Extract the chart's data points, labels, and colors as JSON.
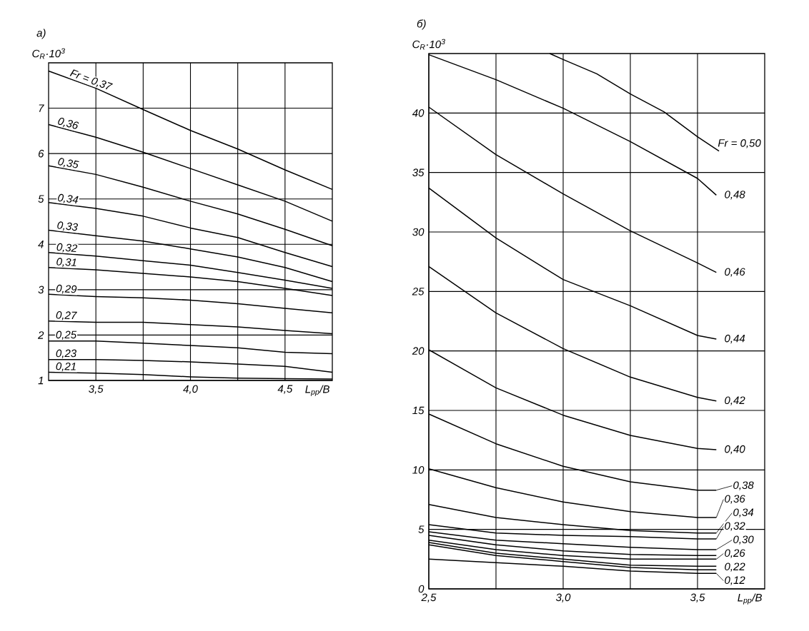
{
  "chart_data": [
    {
      "type": "line",
      "title": "а)",
      "xlabel": "L$_{pp}$/B",
      "ylabel": "C$_{R}$·10$^{3}$",
      "color": "#000000",
      "grid": true,
      "xlim": [
        3.25,
        4.75
      ],
      "ylim": [
        1,
        8
      ],
      "xticks": [
        {
          "value": 3.5,
          "label": "3,5"
        },
        {
          "value": 3.75,
          "label": null
        },
        {
          "value": 4.0,
          "label": "4,0"
        },
        {
          "value": 4.25,
          "label": null
        },
        {
          "value": 4.5,
          "label": "4,5"
        }
      ],
      "yticks": [
        1,
        2,
        3,
        4,
        5,
        6,
        7
      ],
      "x": [
        3.25,
        3.5,
        3.75,
        4.0,
        4.25,
        4.5,
        4.75
      ],
      "series": [
        {
          "name": "Fr = 0,37",
          "values": [
            7.82,
            7.44,
            6.97,
            6.51,
            6.1,
            5.64,
            5.21
          ]
        },
        {
          "name": "0,36",
          "values": [
            6.64,
            6.36,
            6.03,
            5.67,
            5.31,
            4.95,
            4.51
          ]
        },
        {
          "name": "0,35",
          "values": [
            5.73,
            5.54,
            5.26,
            4.95,
            4.67,
            4.33,
            3.97
          ]
        },
        {
          "name": "0,34",
          "values": [
            4.92,
            4.79,
            4.62,
            4.36,
            4.15,
            3.82,
            3.51
          ]
        },
        {
          "name": "0,33",
          "values": [
            4.31,
            4.19,
            4.07,
            3.9,
            3.72,
            3.49,
            3.18
          ]
        },
        {
          "name": "0,32",
          "values": [
            3.82,
            3.74,
            3.64,
            3.54,
            3.38,
            3.21,
            3.03
          ]
        },
        {
          "name": "0,31",
          "values": [
            3.49,
            3.44,
            3.36,
            3.28,
            3.18,
            3.03,
            2.87
          ]
        },
        {
          "name": "0,29",
          "values": [
            2.9,
            2.85,
            2.82,
            2.77,
            2.69,
            2.59,
            2.49
          ]
        },
        {
          "name": "0,27",
          "values": [
            2.31,
            2.28,
            2.28,
            2.23,
            2.18,
            2.1,
            2.03
          ]
        },
        {
          "name": "0,25",
          "values": [
            1.87,
            1.87,
            1.82,
            1.77,
            1.72,
            1.62,
            1.59
          ]
        },
        {
          "name": "0,23",
          "values": [
            1.46,
            1.46,
            1.44,
            1.41,
            1.36,
            1.31,
            1.18
          ]
        },
        {
          "name": "0,21",
          "values": [
            1.18,
            1.16,
            1.13,
            1.08,
            1.05,
            1.04,
            1.03
          ]
        }
      ]
    },
    {
      "type": "line",
      "title": "б)",
      "xlabel": "L$_{pp}$/B",
      "ylabel": "C$_{R}$·10$^{3}$",
      "color": "#000000",
      "grid": true,
      "legend": "bottom right",
      "xlim": [
        2.5,
        3.75
      ],
      "ylim": [
        0,
        45
      ],
      "xticks": [
        {
          "value": 2.5,
          "label": "2,5"
        },
        {
          "value": 2.75,
          "label": null
        },
        {
          "value": 3.0,
          "label": "3,0"
        },
        {
          "value": 3.25,
          "label": null
        },
        {
          "value": 3.5,
          "label": "3,5"
        }
      ],
      "yticks": [
        0,
        5,
        10,
        15,
        20,
        25,
        30,
        35,
        40
      ],
      "x": [
        2.5,
        2.75,
        3.0,
        3.25,
        3.5,
        3.57
      ],
      "series": [
        {
          "name": "Fr = 0,50",
          "x": [
            2.95,
            3.0,
            3.125,
            3.25,
            3.375,
            3.5,
            3.58
          ],
          "values": [
            45,
            44.5,
            43.3,
            41.6,
            40.1,
            38.0,
            36.8
          ]
        },
        {
          "name": "0,48",
          "values": [
            44.9,
            42.8,
            40.4,
            37.6,
            34.5,
            33.1
          ]
        },
        {
          "name": "0,46",
          "values": [
            40.5,
            36.5,
            33.2,
            30.1,
            27.4,
            26.6
          ]
        },
        {
          "name": "0,44",
          "values": [
            33.7,
            29.5,
            26.0,
            23.8,
            21.3,
            21.0
          ]
        },
        {
          "name": "0,42",
          "values": [
            27.1,
            23.2,
            20.2,
            17.8,
            16.1,
            15.8
          ]
        },
        {
          "name": "0,40",
          "values": [
            20.1,
            16.9,
            14.6,
            12.9,
            11.8,
            11.7
          ]
        },
        {
          "name": "0,38",
          "values": [
            14.7,
            12.2,
            10.3,
            9.0,
            8.3,
            8.3
          ]
        },
        {
          "name": "0,36",
          "values": [
            10.1,
            8.5,
            7.3,
            6.5,
            6.0,
            6.0
          ]
        },
        {
          "name": "0,34",
          "values": [
            7.1,
            6.0,
            5.4,
            4.9,
            4.7,
            4.7
          ]
        },
        {
          "name": "0,32",
          "values": [
            5.4,
            4.7,
            4.5,
            4.4,
            4.2,
            4.2
          ]
        },
        {
          "name": "0,30",
          "values": [
            4.8,
            4.1,
            3.8,
            3.5,
            3.3,
            3.3
          ]
        },
        {
          "values": [
            4.5,
            3.7,
            3.2,
            2.9,
            2.8,
            2.8
          ]
        },
        {
          "name": "0,26",
          "values": [
            4.1,
            3.3,
            2.8,
            2.5,
            2.5,
            2.5
          ]
        },
        {
          "values": [
            3.9,
            3.0,
            2.5,
            2.0,
            1.9,
            1.9
          ]
        },
        {
          "name": "0,22",
          "values": [
            3.7,
            2.8,
            2.3,
            1.8,
            1.6,
            1.6
          ]
        },
        {
          "name": "0,12",
          "values": [
            2.5,
            2.2,
            1.9,
            1.5,
            1.3,
            1.3
          ]
        }
      ]
    }
  ]
}
